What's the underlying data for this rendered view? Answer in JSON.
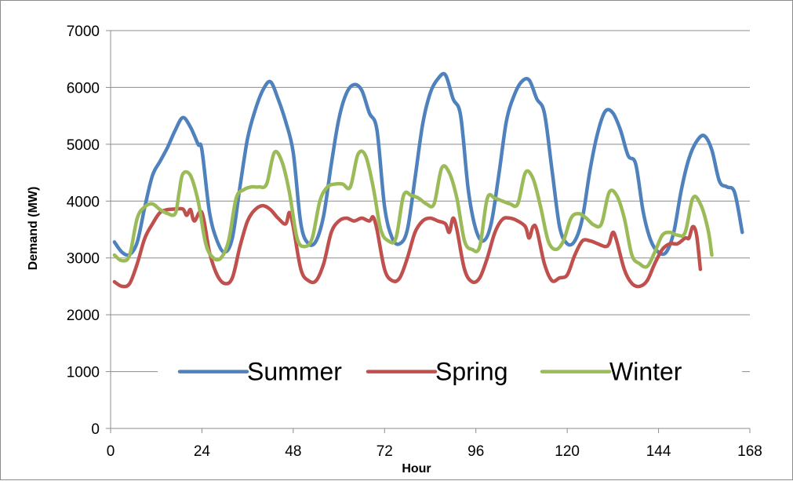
{
  "chart_data": {
    "type": "line",
    "title": "",
    "xlabel": "Hour",
    "ylabel": "Demand (MW)",
    "xlim": [
      0,
      168
    ],
    "ylim": [
      0,
      7000
    ],
    "x_ticks": [
      "0",
      "24",
      "48",
      "72",
      "96",
      "120",
      "144",
      "168"
    ],
    "y_ticks": [
      "0",
      "1000",
      "2000",
      "3000",
      "4000",
      "5000",
      "6000",
      "7000"
    ],
    "grid": "horizontal",
    "legend": "inside-lower-center",
    "series": [
      {
        "name": "Summer",
        "color": "#4f81bd",
        "points": [
          [
            1,
            3280
          ],
          [
            3,
            3100
          ],
          [
            5,
            3060
          ],
          [
            7,
            3280
          ],
          [
            9,
            3900
          ],
          [
            11,
            4450
          ],
          [
            13,
            4700
          ],
          [
            15,
            4950
          ],
          [
            17,
            5250
          ],
          [
            19,
            5470
          ],
          [
            21,
            5300
          ],
          [
            23,
            5000
          ],
          [
            24,
            4900
          ],
          [
            26,
            3800
          ],
          [
            28,
            3300
          ],
          [
            30,
            3100
          ],
          [
            32,
            3350
          ],
          [
            34,
            4250
          ],
          [
            36,
            5100
          ],
          [
            38,
            5600
          ],
          [
            40,
            5950
          ],
          [
            42,
            6100
          ],
          [
            44,
            5800
          ],
          [
            46,
            5400
          ],
          [
            48,
            4850
          ],
          [
            50,
            3600
          ],
          [
            52,
            3250
          ],
          [
            54,
            3300
          ],
          [
            56,
            3750
          ],
          [
            58,
            4650
          ],
          [
            60,
            5450
          ],
          [
            62,
            5900
          ],
          [
            64,
            6050
          ],
          [
            66,
            5950
          ],
          [
            68,
            5550
          ],
          [
            70,
            5250
          ],
          [
            72,
            3900
          ],
          [
            74,
            3350
          ],
          [
            76,
            3250
          ],
          [
            78,
            3500
          ],
          [
            80,
            4400
          ],
          [
            82,
            5350
          ],
          [
            84,
            5900
          ],
          [
            86,
            6150
          ],
          [
            88,
            6220
          ],
          [
            90,
            5800
          ],
          [
            92,
            5500
          ],
          [
            94,
            4200
          ],
          [
            96,
            3500
          ],
          [
            98,
            3300
          ],
          [
            100,
            3600
          ],
          [
            102,
            4450
          ],
          [
            104,
            5400
          ],
          [
            106,
            5850
          ],
          [
            108,
            6100
          ],
          [
            110,
            6130
          ],
          [
            112,
            5800
          ],
          [
            114,
            5550
          ],
          [
            116,
            4550
          ],
          [
            118,
            3550
          ],
          [
            120,
            3250
          ],
          [
            122,
            3300
          ],
          [
            124,
            3700
          ],
          [
            126,
            4550
          ],
          [
            128,
            5200
          ],
          [
            130,
            5580
          ],
          [
            132,
            5550
          ],
          [
            134,
            5250
          ],
          [
            136,
            4800
          ],
          [
            138,
            4650
          ],
          [
            140,
            3800
          ],
          [
            142,
            3300
          ],
          [
            144,
            3100
          ],
          [
            146,
            3100
          ],
          [
            148,
            3450
          ],
          [
            150,
            4200
          ],
          [
            152,
            4750
          ],
          [
            154,
            5050
          ],
          [
            156,
            5150
          ],
          [
            158,
            4900
          ],
          [
            160,
            4350
          ],
          [
            162,
            4250
          ],
          [
            164,
            4150
          ],
          [
            166,
            3450
          ]
        ]
      },
      {
        "name": "Spring",
        "color": "#c0504d",
        "points": [
          [
            1,
            2580
          ],
          [
            3,
            2500
          ],
          [
            5,
            2550
          ],
          [
            7,
            2900
          ],
          [
            9,
            3350
          ],
          [
            11,
            3600
          ],
          [
            13,
            3800
          ],
          [
            15,
            3850
          ],
          [
            17,
            3860
          ],
          [
            19,
            3860
          ],
          [
            20,
            3750
          ],
          [
            21,
            3850
          ],
          [
            22,
            3650
          ],
          [
            24,
            3800
          ],
          [
            26,
            3100
          ],
          [
            28,
            2700
          ],
          [
            30,
            2550
          ],
          [
            32,
            2650
          ],
          [
            34,
            3200
          ],
          [
            36,
            3650
          ],
          [
            38,
            3850
          ],
          [
            40,
            3920
          ],
          [
            42,
            3850
          ],
          [
            44,
            3700
          ],
          [
            46,
            3600
          ],
          [
            47,
            3800
          ],
          [
            48,
            3550
          ],
          [
            50,
            2800
          ],
          [
            52,
            2600
          ],
          [
            54,
            2600
          ],
          [
            56,
            2900
          ],
          [
            58,
            3450
          ],
          [
            60,
            3650
          ],
          [
            62,
            3700
          ],
          [
            64,
            3650
          ],
          [
            66,
            3700
          ],
          [
            68,
            3650
          ],
          [
            69,
            3720
          ],
          [
            70,
            3500
          ],
          [
            72,
            2800
          ],
          [
            74,
            2600
          ],
          [
            76,
            2650
          ],
          [
            78,
            3000
          ],
          [
            80,
            3450
          ],
          [
            82,
            3650
          ],
          [
            84,
            3700
          ],
          [
            86,
            3650
          ],
          [
            88,
            3600
          ],
          [
            89,
            3450
          ],
          [
            90,
            3700
          ],
          [
            91,
            3500
          ],
          [
            93,
            2800
          ],
          [
            95,
            2580
          ],
          [
            97,
            2650
          ],
          [
            99,
            3000
          ],
          [
            101,
            3450
          ],
          [
            103,
            3680
          ],
          [
            105,
            3700
          ],
          [
            107,
            3650
          ],
          [
            109,
            3550
          ],
          [
            110,
            3350
          ],
          [
            111,
            3550
          ],
          [
            112,
            3500
          ],
          [
            114,
            2900
          ],
          [
            116,
            2600
          ],
          [
            118,
            2650
          ],
          [
            120,
            2700
          ],
          [
            122,
            3050
          ],
          [
            124,
            3300
          ],
          [
            126,
            3300
          ],
          [
            128,
            3250
          ],
          [
            130,
            3200
          ],
          [
            131,
            3250
          ],
          [
            132,
            3450
          ],
          [
            133,
            3300
          ],
          [
            135,
            2800
          ],
          [
            137,
            2550
          ],
          [
            139,
            2500
          ],
          [
            141,
            2600
          ],
          [
            143,
            2900
          ],
          [
            145,
            3150
          ],
          [
            147,
            3250
          ],
          [
            149,
            3250
          ],
          [
            151,
            3350
          ],
          [
            152,
            3350
          ],
          [
            153,
            3550
          ],
          [
            154,
            3400
          ],
          [
            155,
            2800
          ]
        ]
      },
      {
        "name": "Winter",
        "color": "#9bbb59",
        "points": [
          [
            1,
            3050
          ],
          [
            3,
            2950
          ],
          [
            5,
            3050
          ],
          [
            7,
            3700
          ],
          [
            9,
            3900
          ],
          [
            11,
            3950
          ],
          [
            13,
            3850
          ],
          [
            15,
            3780
          ],
          [
            17,
            3780
          ],
          [
            18,
            4150
          ],
          [
            19,
            4480
          ],
          [
            21,
            4450
          ],
          [
            23,
            4000
          ],
          [
            25,
            3250
          ],
          [
            27,
            3000
          ],
          [
            29,
            3000
          ],
          [
            31,
            3300
          ],
          [
            33,
            4050
          ],
          [
            35,
            4200
          ],
          [
            37,
            4250
          ],
          [
            39,
            4250
          ],
          [
            41,
            4300
          ],
          [
            43,
            4850
          ],
          [
            45,
            4700
          ],
          [
            47,
            4150
          ],
          [
            49,
            3350
          ],
          [
            51,
            3200
          ],
          [
            53,
            3350
          ],
          [
            55,
            4000
          ],
          [
            57,
            4250
          ],
          [
            59,
            4300
          ],
          [
            61,
            4300
          ],
          [
            63,
            4250
          ],
          [
            65,
            4820
          ],
          [
            67,
            4800
          ],
          [
            69,
            4250
          ],
          [
            71,
            3500
          ],
          [
            73,
            3300
          ],
          [
            75,
            3350
          ],
          [
            77,
            4100
          ],
          [
            79,
            4100
          ],
          [
            81,
            4050
          ],
          [
            83,
            3950
          ],
          [
            85,
            3950
          ],
          [
            87,
            4580
          ],
          [
            89,
            4500
          ],
          [
            91,
            4050
          ],
          [
            93,
            3300
          ],
          [
            95,
            3150
          ],
          [
            97,
            3200
          ],
          [
            99,
            4050
          ],
          [
            101,
            4050
          ],
          [
            103,
            4000
          ],
          [
            105,
            3950
          ],
          [
            107,
            3950
          ],
          [
            109,
            4500
          ],
          [
            111,
            4400
          ],
          [
            113,
            3900
          ],
          [
            115,
            3300
          ],
          [
            117,
            3150
          ],
          [
            119,
            3300
          ],
          [
            121,
            3700
          ],
          [
            123,
            3780
          ],
          [
            125,
            3700
          ],
          [
            127,
            3580
          ],
          [
            129,
            3600
          ],
          [
            131,
            4150
          ],
          [
            133,
            4100
          ],
          [
            135,
            3700
          ],
          [
            137,
            3050
          ],
          [
            139,
            2900
          ],
          [
            141,
            2850
          ],
          [
            143,
            3100
          ],
          [
            145,
            3400
          ],
          [
            147,
            3450
          ],
          [
            149,
            3400
          ],
          [
            151,
            3450
          ],
          [
            153,
            4050
          ],
          [
            155,
            3950
          ],
          [
            157,
            3500
          ],
          [
            158,
            3050
          ]
        ]
      }
    ]
  }
}
